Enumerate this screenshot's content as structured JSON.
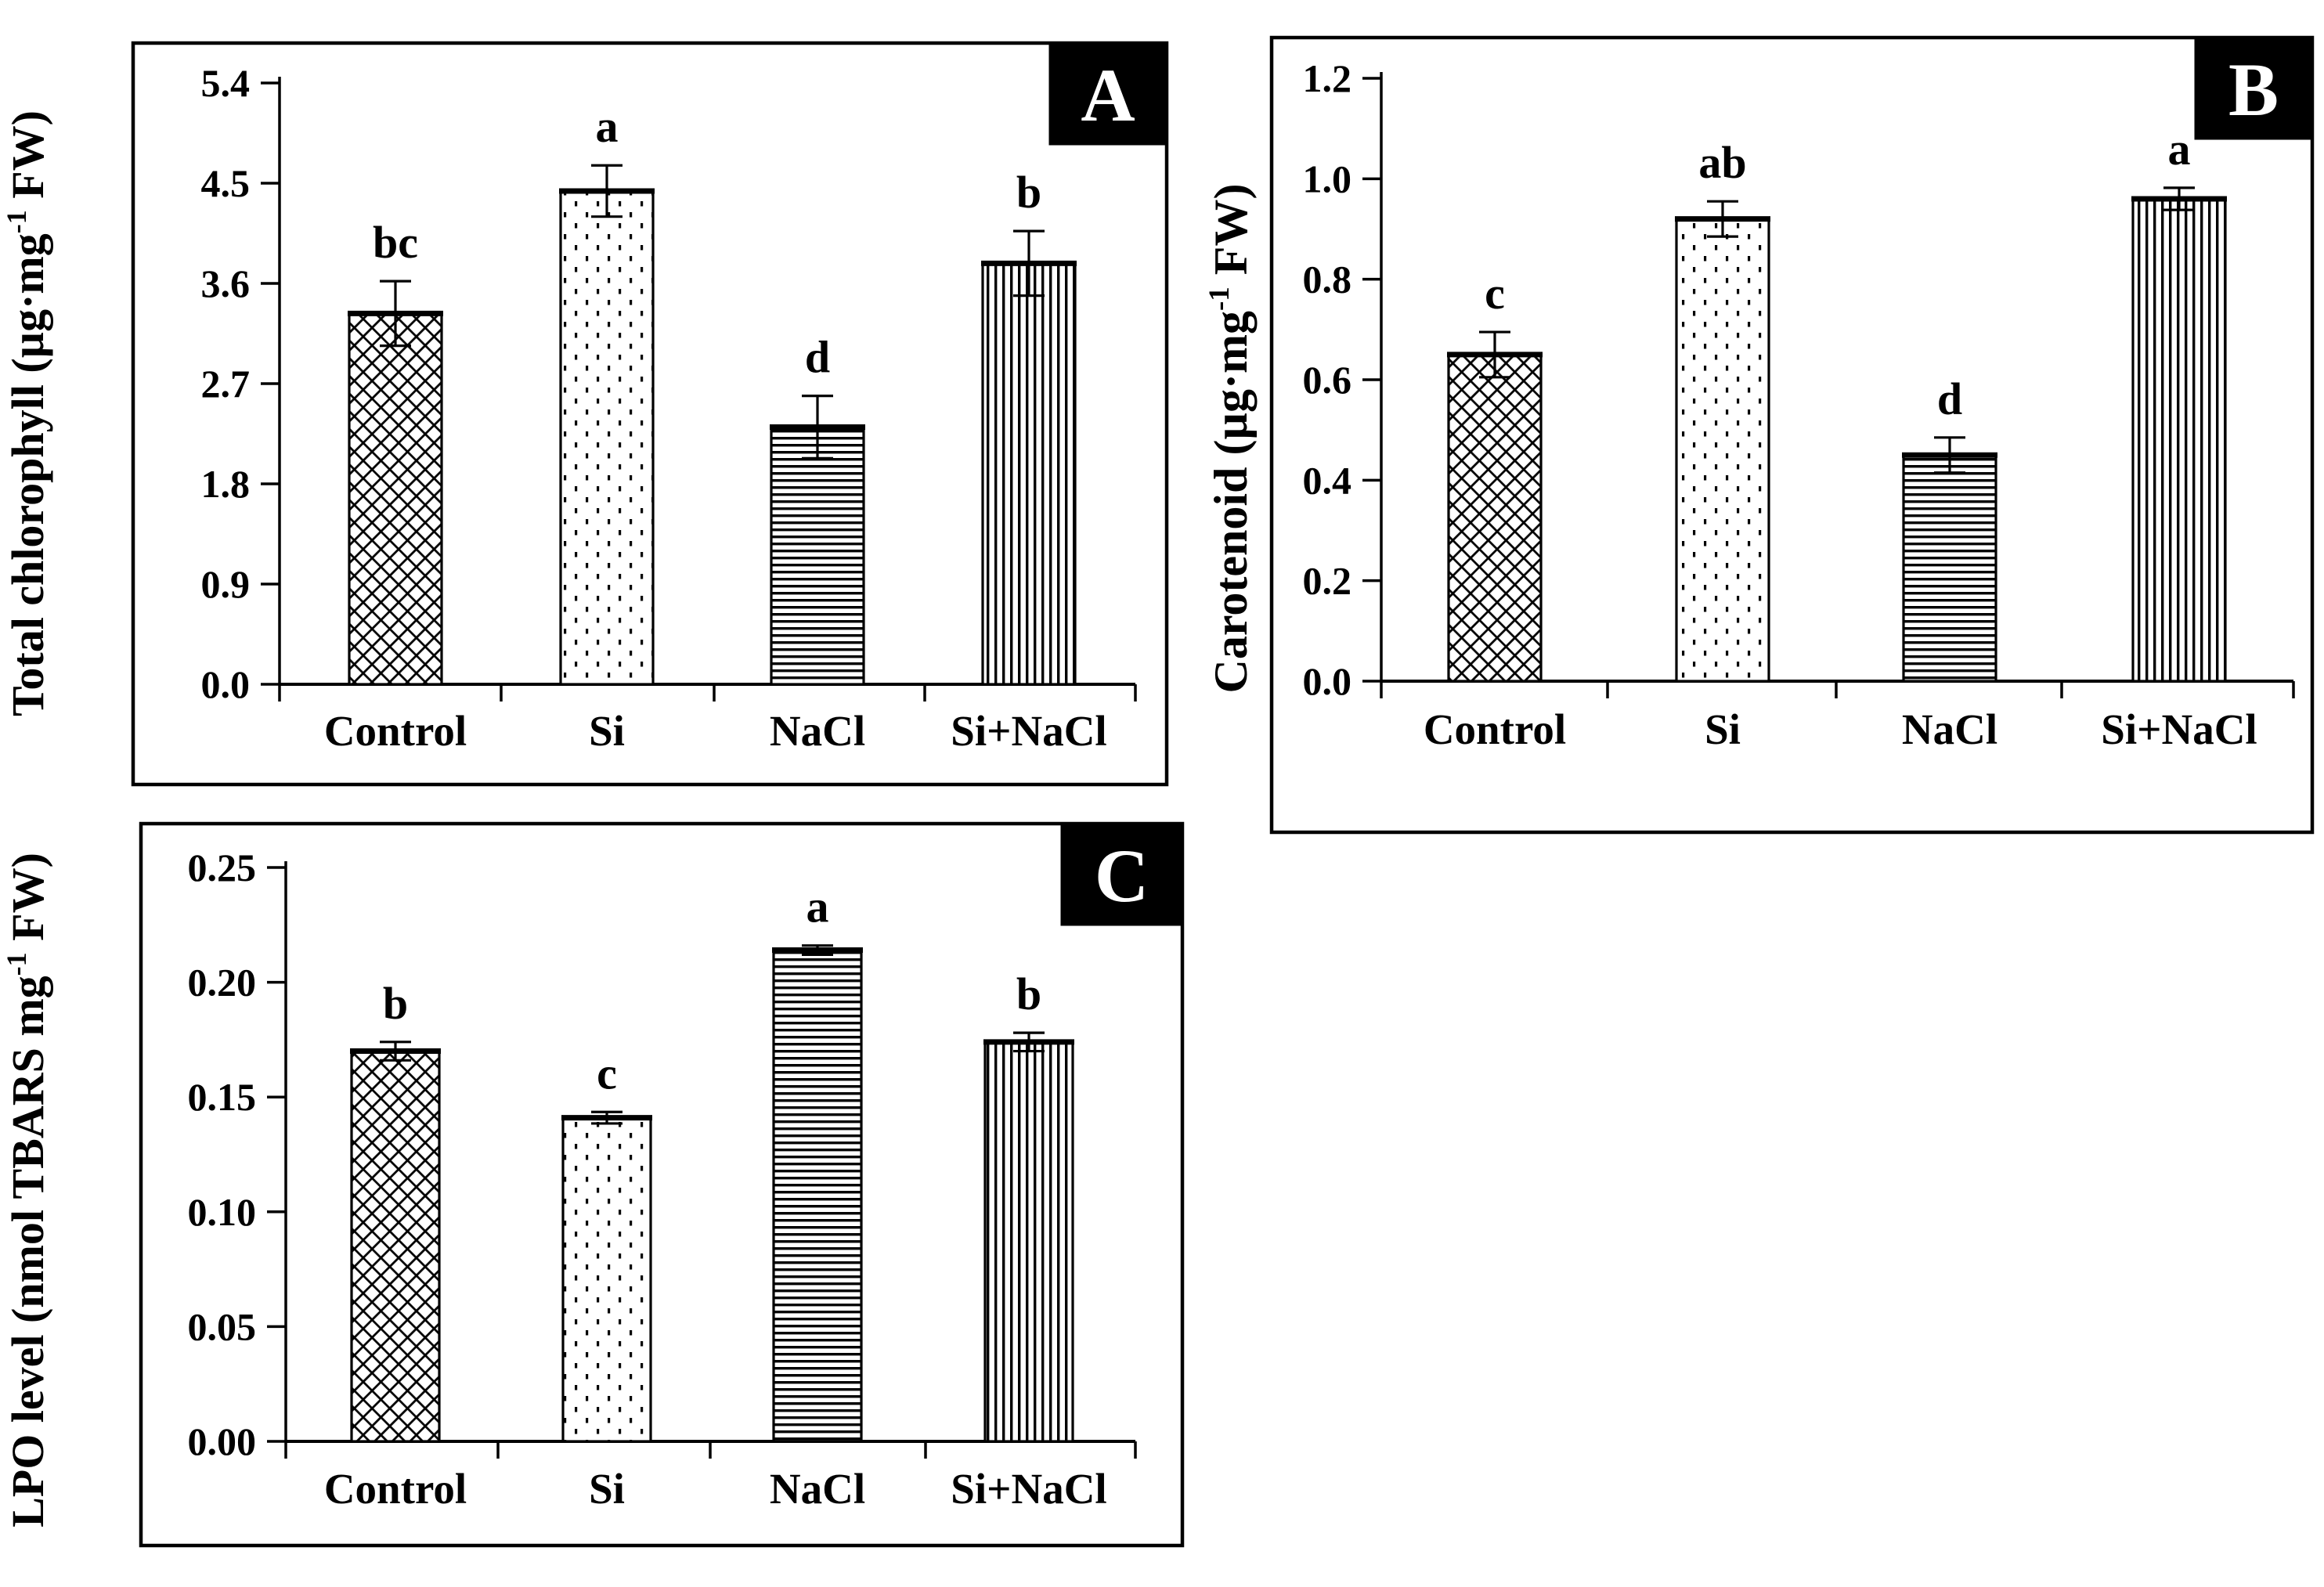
{
  "background_color": "#ffffff",
  "ink_color": "#000000",
  "panel_label_box_color": "#000000",
  "panel_label_text_color": "#ffffff",
  "chart_data": [
    {
      "type": "bar",
      "panel_label": "A",
      "ylabel": "Total chlorophyll (µg·mg⁻¹ FW)",
      "ylabel_parts": {
        "pre": "Total chlorophyll (µg·mg",
        "sup": "-1",
        "post": " FW)"
      },
      "xlabel": "",
      "categories": [
        "Control",
        "Si",
        "NaCl",
        "Si+NaCl"
      ],
      "values": [
        3.33,
        4.43,
        2.31,
        3.78
      ],
      "errors": [
        0.29,
        0.23,
        0.28,
        0.29
      ],
      "sig_letters": [
        "bc",
        "a",
        "d",
        "b"
      ],
      "bar_patterns": [
        "crosshatch",
        "dots",
        "horizontal-lines",
        "vertical-lines"
      ],
      "ylim": [
        0,
        5.4
      ],
      "ytick_step": 0.9,
      "ytick_labels": [
        "0.0",
        "0.9",
        "1.8",
        "2.7",
        "3.6",
        "4.5",
        "5.4"
      ],
      "grid": false,
      "legend": "none",
      "bar_fill": "#ffffff"
    },
    {
      "type": "bar",
      "panel_label": "B",
      "ylabel": "Carotenoid (µg·mg⁻¹ FW)",
      "ylabel_parts": {
        "pre": "Carotenoid (µg·mg",
        "sup": "-1",
        "post": " FW)"
      },
      "xlabel": "",
      "categories": [
        "Control",
        "Si",
        "NaCl",
        "Si+NaCl"
      ],
      "values": [
        0.65,
        0.92,
        0.45,
        0.96
      ],
      "errors": [
        0.045,
        0.035,
        0.035,
        0.022
      ],
      "sig_letters": [
        "c",
        "ab",
        "d",
        "a"
      ],
      "bar_patterns": [
        "crosshatch",
        "dots",
        "horizontal-lines",
        "vertical-lines"
      ],
      "ylim": [
        0,
        1.2
      ],
      "ytick_step": 0.2,
      "ytick_labels": [
        "0.0",
        "0.2",
        "0.4",
        "0.6",
        "0.8",
        "1.0",
        "1.2"
      ],
      "grid": false,
      "legend": "none",
      "bar_fill": "#ffffff"
    },
    {
      "type": "bar",
      "panel_label": "C",
      "ylabel": "LPO level (nmol TBARS mg⁻¹ FW)",
      "ylabel_parts": {
        "pre": "LPO level (nmol TBARS mg",
        "sup": "-1",
        "post": " FW)"
      },
      "xlabel": "",
      "categories": [
        "Control",
        "Si",
        "NaCl",
        "Si+NaCl"
      ],
      "values": [
        0.17,
        0.141,
        0.214,
        0.174
      ],
      "errors": [
        0.004,
        0.0025,
        0.002,
        0.004
      ],
      "sig_letters": [
        "b",
        "c",
        "a",
        "b"
      ],
      "bar_patterns": [
        "crosshatch",
        "dots",
        "horizontal-lines",
        "vertical-lines"
      ],
      "ylim": [
        0,
        0.25
      ],
      "ytick_step": 0.05,
      "ytick_labels": [
        "0.00",
        "0.05",
        "0.10",
        "0.15",
        "0.20",
        "0.25"
      ],
      "grid": false,
      "legend": "none",
      "bar_fill": "#ffffff"
    }
  ]
}
